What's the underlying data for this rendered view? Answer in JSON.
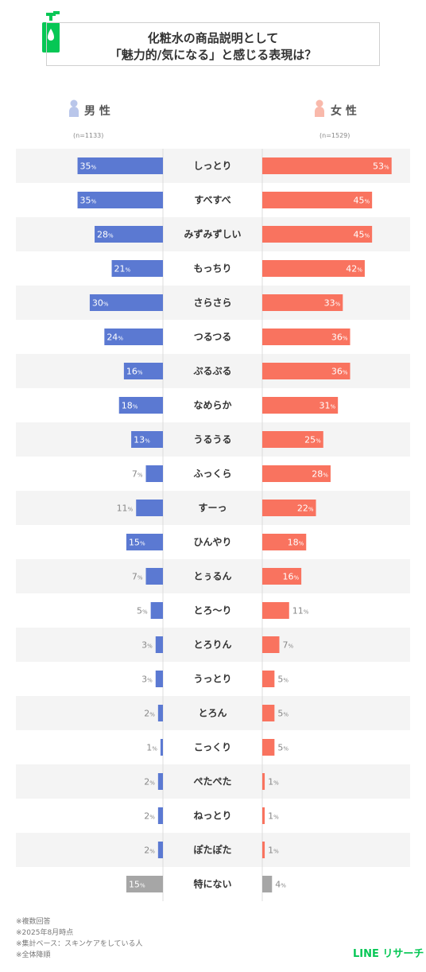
{
  "title": [
    "化粧水の商品説明として",
    "「魅力的/気になる」と感じる表現は？"
  ],
  "male_label": "男 性",
  "female_label": "女 性",
  "male_n": "(n=1133)",
  "female_n": "(n=1529)",
  "footnotes": [
    "※複数回答",
    "※2025年8月時点",
    "※集計ベース：スキンケアをしている人",
    "※全体降順"
  ],
  "logo": "LINE リサーチ",
  "colors": {
    "male": "#5b79d2",
    "female": "#f9735f",
    "other": "#a6a6a6",
    "row_alt": "#f4f4f4"
  },
  "chart_data": {
    "type": "bar",
    "categories": [
      "しっとり",
      "すべすべ",
      "みずみずしい",
      "もっちり",
      "さらさら",
      "つるつる",
      "ぷるぷる",
      "なめらか",
      "うるうる",
      "ふっくら",
      "すーっ",
      "ひんやり",
      "とぅるん",
      "とろ〜り",
      "とろりん",
      "うっとり",
      "とろん",
      "こっくり",
      "ぺたぺた",
      "ねっとり",
      "ぽたぽた",
      "特にない"
    ],
    "unit": "%",
    "series": [
      {
        "name": "男 性",
        "values": [
          35,
          35,
          28,
          21,
          30,
          24,
          16,
          18,
          13,
          7,
          11,
          15,
          7,
          5,
          3,
          3,
          2,
          1,
          2,
          2,
          2,
          15
        ]
      },
      {
        "name": "女 性",
        "values": [
          53,
          45,
          45,
          42,
          33,
          36,
          36,
          31,
          25,
          28,
          22,
          18,
          16,
          11,
          7,
          5,
          5,
          5,
          1,
          1,
          1,
          4
        ]
      }
    ]
  }
}
